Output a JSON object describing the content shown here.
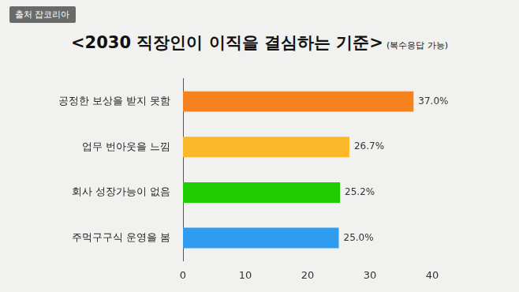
{
  "chart_data": {
    "type": "bar",
    "orientation": "horizontal",
    "title": "<2030 직장인이 이직을 결심하는 기준>",
    "subtitle": "(복수응답 가능)",
    "annotations": [
      "출처 잡코리아"
    ],
    "categories": [
      "공정한 보상을 받지 못함",
      "업무 번아웃을 느낌",
      "회사 성장가능이 없음",
      "주먹구구식 운영을 봄"
    ],
    "values": [
      37.0,
      26.7,
      25.2,
      25.0
    ],
    "value_labels": [
      "37.0%",
      "26.7%",
      "25.2%",
      "25.0%"
    ],
    "colors": [
      "#f5821f",
      "#fbb829",
      "#1fcc00",
      "#2f9cef"
    ],
    "xlim": [
      0,
      40
    ],
    "xticks": [
      0,
      10,
      20,
      30,
      40
    ],
    "grid": false,
    "data_labels": true
  }
}
